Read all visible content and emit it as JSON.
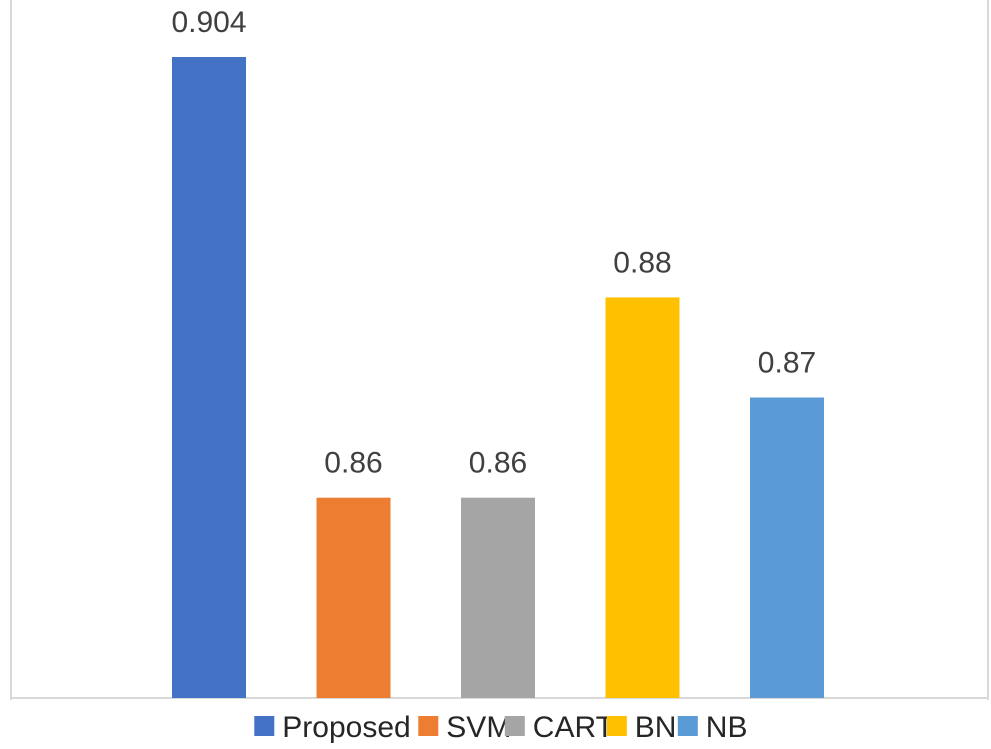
{
  "chart_data": {
    "type": "bar",
    "title": "",
    "xlabel": "",
    "ylabel": "",
    "categories": [
      "Proposed",
      "SVM",
      "CART",
      "BN",
      "NB"
    ],
    "values": [
      0.904,
      0.86,
      0.86,
      0.88,
      0.87
    ],
    "value_labels": [
      "0.904",
      "0.86",
      "0.86",
      "0.88",
      "0.87"
    ],
    "colors": [
      "#4472c4",
      "#ed7d31",
      "#a5a5a5",
      "#ffc000",
      "#5b9bd5"
    ],
    "ylim": [
      0.84,
      0.904
    ],
    "grid": false,
    "legend": {
      "placement": "bottom",
      "entries": [
        "Proposed",
        "SVM",
        "CART",
        "BN",
        "NB"
      ]
    }
  }
}
